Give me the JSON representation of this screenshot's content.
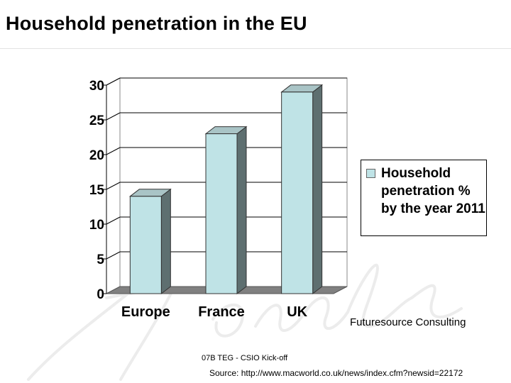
{
  "slide": {
    "title": "Household penetration in the EU",
    "credit": "Futuresource Consulting",
    "footer_event": "07B TEG - CSIO Kick-off",
    "footer_source": "Source: http://www.macworld.co.uk/news/index.cfm?newsid=22172"
  },
  "colors": {
    "bar_front": "#bfe3e6",
    "bar_side": "#5e6f70",
    "bar_top": "#a9c4c6",
    "floor": "#808080",
    "grid": "#000000"
  },
  "chart_data": {
    "type": "bar",
    "categories": [
      "Europe",
      "France",
      "UK"
    ],
    "series": [
      {
        "name": "Household penetration % by the year 2011",
        "values": [
          14,
          23,
          29
        ]
      }
    ],
    "ylim": [
      0,
      30
    ],
    "yticks": [
      "0",
      "5",
      "10",
      "15",
      "20",
      "25",
      "30"
    ],
    "grid": true,
    "legend_position": "right",
    "style": "3d"
  }
}
